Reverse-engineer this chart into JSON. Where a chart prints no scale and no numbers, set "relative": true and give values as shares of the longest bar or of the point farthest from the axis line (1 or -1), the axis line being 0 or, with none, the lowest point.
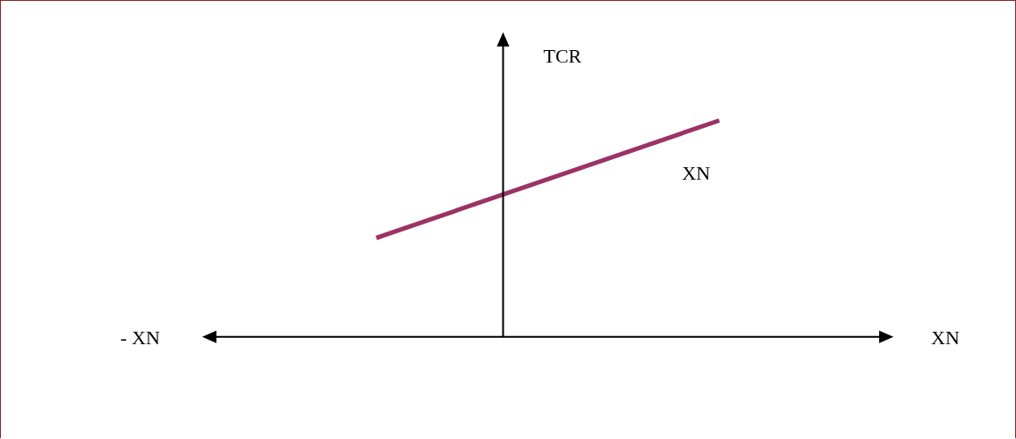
{
  "chart_data": {
    "type": "line",
    "relative": true,
    "categories": [
      null,
      null
    ],
    "series": [
      {
        "name": "XN",
        "color": "#9b3366",
        "values": [
          0.457,
          1
        ]
      }
    ],
    "xlabel": "XN",
    "ylabel": "TCR",
    "annotations": [
      "- XN"
    ],
    "marker": "none"
  }
}
